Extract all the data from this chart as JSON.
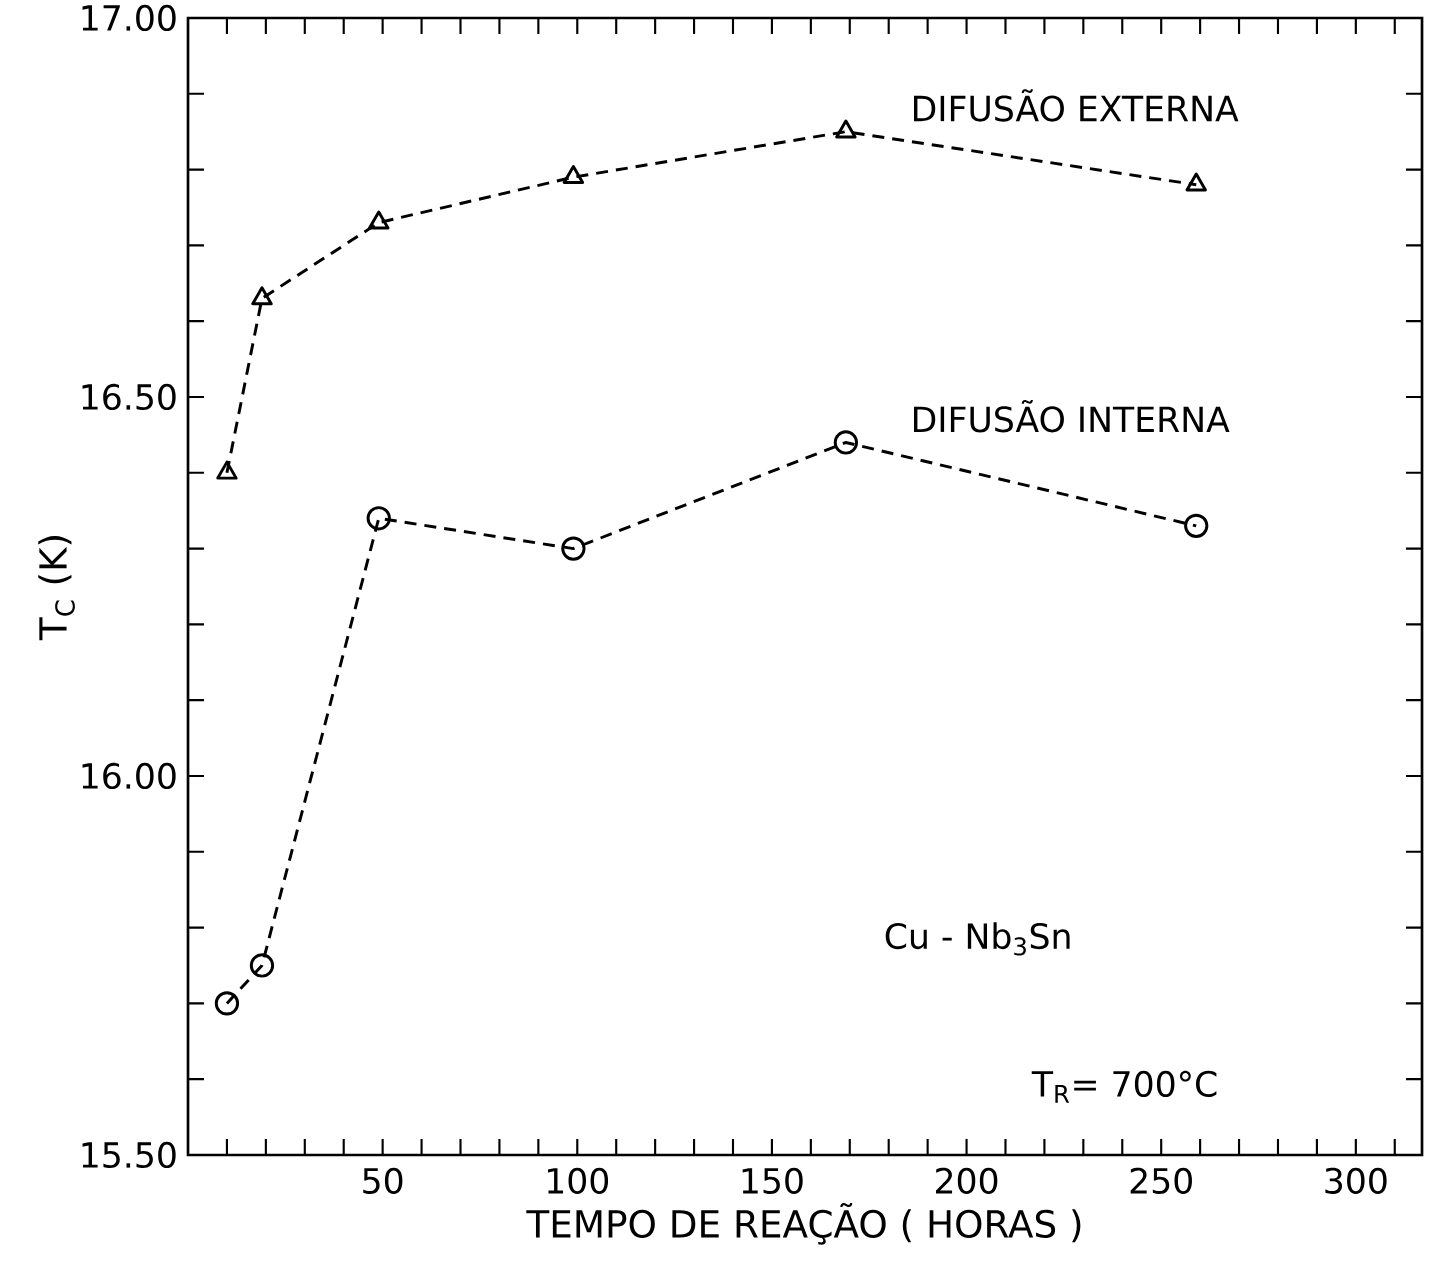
{
  "chart_data": {
    "type": "line",
    "xlabel": "TEMPO DE REAÇÃO ( HORAS )",
    "ylabel": "T$_{C}$ (K)",
    "x": [
      10,
      19,
      49,
      99,
      169,
      259
    ],
    "series": [
      {
        "name": "DIFUSÃO EXTERNA",
        "color": "#000000",
        "marker": "triangle",
        "values": [
          16.4,
          16.63,
          16.73,
          16.79,
          16.85,
          16.78
        ]
      },
      {
        "name": "DIFUSÃO INTERNA",
        "color": "#000000",
        "marker": "circle",
        "values": [
          15.7,
          15.75,
          16.34,
          16.3,
          16.44,
          16.33
        ]
      }
    ],
    "line_style": "dashed",
    "grid": false,
    "xlim": [
      0,
      317
    ],
    "ylim": [
      15.5,
      17.0
    ],
    "xticks": [
      {
        "value": 10,
        "label": null
      },
      {
        "value": 20,
        "label": null
      },
      {
        "value": 30,
        "label": null
      },
      {
        "value": 40,
        "label": null
      },
      50,
      {
        "value": 60,
        "label": null
      },
      {
        "value": 70,
        "label": null
      },
      {
        "value": 80,
        "label": null
      },
      {
        "value": 90,
        "label": null
      },
      100,
      {
        "value": 110,
        "label": null
      },
      {
        "value": 120,
        "label": null
      },
      {
        "value": 130,
        "label": null
      },
      {
        "value": 140,
        "label": null
      },
      150,
      {
        "value": 160,
        "label": null
      },
      {
        "value": 170,
        "label": null
      },
      {
        "value": 180,
        "label": null
      },
      {
        "value": 190,
        "label": null
      },
      200,
      {
        "value": 210,
        "label": null
      },
      {
        "value": 220,
        "label": null
      },
      {
        "value": 230,
        "label": null
      },
      {
        "value": 240,
        "label": null
      },
      250,
      {
        "value": 260,
        "label": null
      },
      {
        "value": 270,
        "label": null
      },
      {
        "value": 280,
        "label": null
      },
      {
        "value": 290,
        "label": null
      },
      300,
      {
        "value": 310,
        "label": null
      }
    ],
    "yticks": [
      {
        "value": 15.5,
        "label": "15.50"
      },
      {
        "value": 15.6,
        "label": null
      },
      {
        "value": 15.7,
        "label": null
      },
      {
        "value": 15.8,
        "label": null
      },
      {
        "value": 15.9,
        "label": null
      },
      {
        "value": 16.0,
        "label": "16.00"
      },
      {
        "value": 16.1,
        "label": null
      },
      {
        "value": 16.2,
        "label": null
      },
      {
        "value": 16.3,
        "label": null
      },
      {
        "value": 16.4,
        "label": null
      },
      {
        "value": 16.5,
        "label": "16.50"
      },
      {
        "value": 16.6,
        "label": null
      },
      {
        "value": 16.7,
        "label": null
      },
      {
        "value": 16.8,
        "label": null
      },
      {
        "value": 16.9,
        "label": null
      },
      {
        "value": 17.0,
        "label": "17.00"
      }
    ],
    "annotations": [
      "Cu - Nb$_{3}$Sn",
      "T$_{R}$= 700°C"
    ]
  }
}
